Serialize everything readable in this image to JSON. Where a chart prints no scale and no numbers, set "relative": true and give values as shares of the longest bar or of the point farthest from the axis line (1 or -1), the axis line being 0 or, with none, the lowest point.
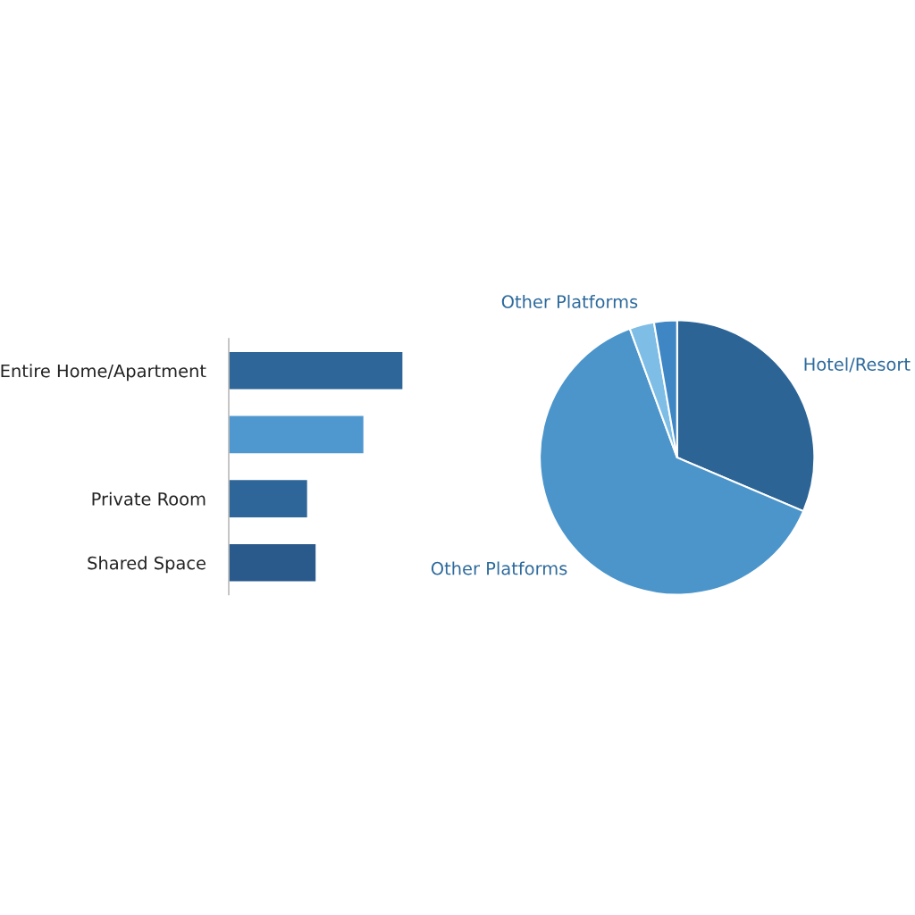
{
  "chart_data": [
    {
      "type": "bar",
      "orientation": "horizontal",
      "relative": true,
      "categories": [
        "Entire Home/Apartment",
        null,
        "Private Room",
        "Shared Space"
      ],
      "values": [
        1,
        0.776,
        0.453,
        0.502
      ],
      "colors": [
        "#2e6699",
        "#4f97cf",
        "#2e6699",
        "#2a5a8c"
      ]
    },
    {
      "type": "pie",
      "categories": [
        "Hotel/Resort",
        "Other Platforms",
        "Other Platforms",
        null
      ],
      "values": [
        31.4,
        63.0,
        2.9,
        2.7
      ],
      "colors": [
        "#2c6496",
        "#4b95cb",
        "#7dbde6",
        "#3e86c4"
      ]
    }
  ]
}
